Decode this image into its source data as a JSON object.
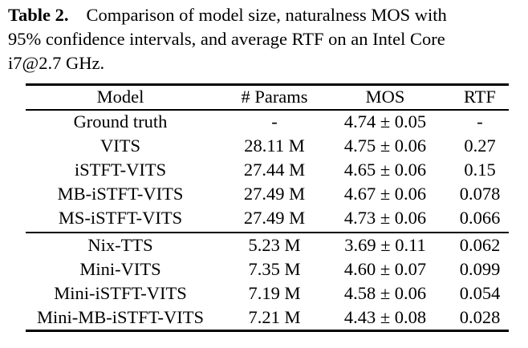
{
  "caption": {
    "label": "Table 2.",
    "lines": [
      "Comparison of model size, naturalness MOS with",
      "95% confidence intervals, and average RTF on an Intel Core",
      "i7@2.7 GHz."
    ]
  },
  "table": {
    "headers": [
      "Model",
      "# Params",
      "MOS",
      "RTF"
    ],
    "group1": [
      [
        "Ground truth",
        "-",
        "4.74 ± 0.05",
        "-"
      ],
      [
        "VITS",
        "28.11 M",
        "4.75 ± 0.06",
        "0.27"
      ],
      [
        "iSTFT-VITS",
        "27.44 M",
        "4.65 ± 0.06",
        "0.15"
      ],
      [
        "MB-iSTFT-VITS",
        "27.49 M",
        "4.67 ± 0.06",
        "0.078"
      ],
      [
        "MS-iSTFT-VITS",
        "27.49 M",
        "4.73 ± 0.06",
        "0.066"
      ]
    ],
    "group2": [
      [
        "Nix-TTS",
        "5.23 M",
        "3.69 ± 0.11",
        "0.062"
      ],
      [
        "Mini-VITS",
        "7.35 M",
        "4.60 ± 0.07",
        "0.099"
      ],
      [
        "Mini-iSTFT-VITS",
        "7.19 M",
        "4.58 ± 0.06",
        "0.054"
      ],
      [
        "Mini-MB-iSTFT-VITS",
        "7.21 M",
        "4.43 ± 0.08",
        "0.028"
      ]
    ]
  }
}
